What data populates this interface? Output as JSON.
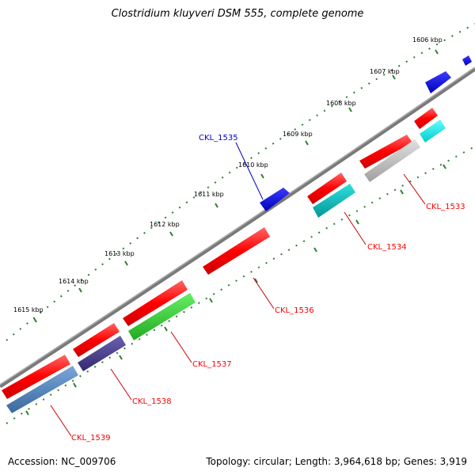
{
  "title": "Clostridium kluyveri DSM 555, complete genome",
  "accession": "Accession: NC_009706",
  "summary": "Topology: circular; Length: 3,964,618 bp; Genes: 3,919",
  "ticks": [
    "1606 kbp",
    "1607 kbp",
    "1608 kbp",
    "1609 kbp",
    "1610 kbp",
    "1611 kbp",
    "1612 kbp",
    "1613 kbp",
    "1614 kbp",
    "1615 kbp"
  ],
  "labels": [
    {
      "text": "CKL_1533",
      "color": "#ff0000"
    },
    {
      "text": "CKL_1534",
      "color": "#ff0000"
    },
    {
      "text": "CKL_1535",
      "color": "#0000cc"
    },
    {
      "text": "CKL_1536",
      "color": "#ff0000"
    },
    {
      "text": "CKL_1537",
      "color": "#ff0000"
    },
    {
      "text": "CKL_1538",
      "color": "#ff0000"
    },
    {
      "text": "CKL_1539",
      "color": "#ff0000"
    }
  ],
  "colors": {
    "backbone": "#7a7a7a",
    "cds": "#ff1111",
    "blue_feature": "#0000ee",
    "tick_mark": "#2e7d32",
    "cyan": "#00e0e0",
    "gray": "#bdbdbd",
    "green": "#33cc33",
    "purple": "#4a3f8f",
    "steel": "#4f7fb8",
    "teal": "#00bfbf"
  }
}
